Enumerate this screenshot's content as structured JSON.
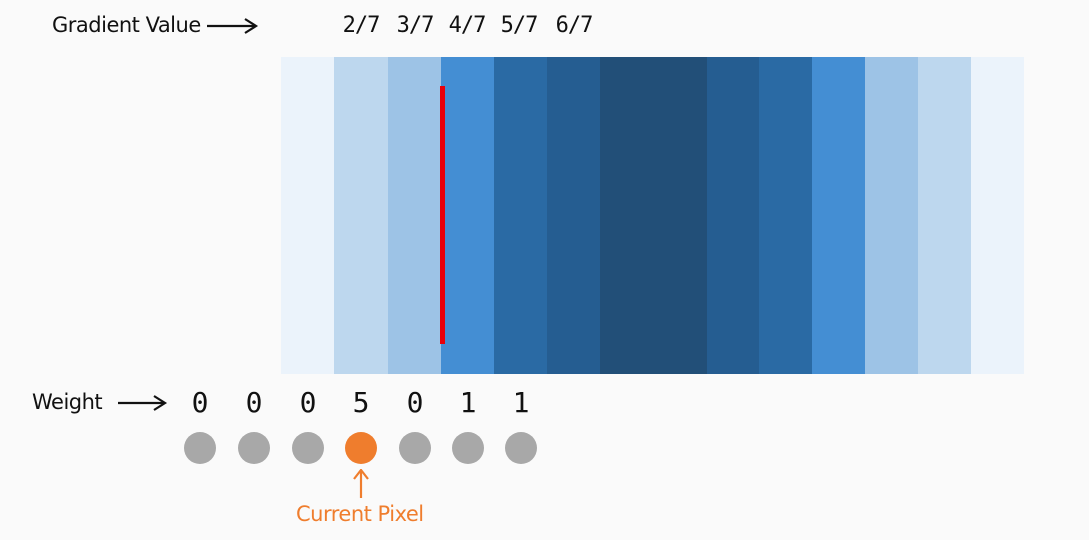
{
  "header": {
    "gradient_label": "Gradient Value",
    "gradient_values": [
      "2/7",
      "3/7",
      "4/7",
      "5/7",
      "6/7"
    ]
  },
  "strip": {
    "bands": [
      {
        "color": "#ebf3fb",
        "width": 53
      },
      {
        "color": "#bdd7ee",
        "width": 54
      },
      {
        "color": "#9dc3e6",
        "width": 53
      },
      {
        "color": "#448ed3",
        "width": 53
      },
      {
        "color": "#2a6aa4",
        "width": 53
      },
      {
        "color": "#255d91",
        "width": 53
      },
      {
        "color": "#224f78",
        "width": 107
      },
      {
        "color": "#255d91",
        "width": 52
      },
      {
        "color": "#2a6aa4",
        "width": 53
      },
      {
        "color": "#448ed3",
        "width": 53
      },
      {
        "color": "#9dc3e6",
        "width": 53
      },
      {
        "color": "#bdd7ee",
        "width": 53
      },
      {
        "color": "#ebf3fb",
        "width": 53
      }
    ],
    "boundary_color": "#e8000b"
  },
  "weights": {
    "label": "Weight",
    "values": [
      "0",
      "0",
      "0",
      "5",
      "0",
      "1",
      "1"
    ],
    "current_index": 3
  },
  "current_pixel": {
    "label": "Current Pixel",
    "color": "#ef7d2d"
  }
}
